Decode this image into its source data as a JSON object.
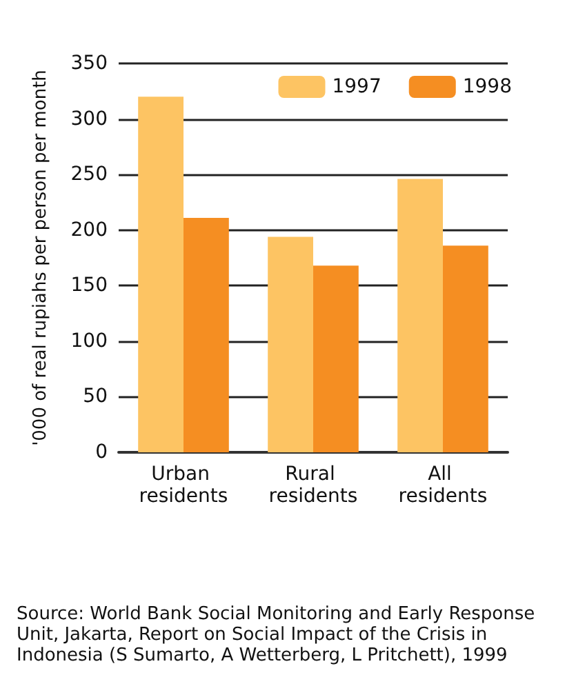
{
  "chart_data": {
    "type": "bar",
    "ylabel": "'000 of real rupiahs per person per month",
    "categories": [
      "Urban residents",
      "Rural residents",
      "All residents"
    ],
    "series": [
      {
        "name": "1997",
        "color": "#fdc463",
        "values": [
          320,
          194,
          246
        ]
      },
      {
        "name": "1998",
        "color": "#f58e22",
        "values": [
          211,
          168,
          186
        ]
      }
    ],
    "ylim": [
      0,
      350
    ],
    "yticks": [
      0,
      50,
      100,
      150,
      200,
      250,
      300,
      350
    ],
    "grid": "y",
    "legend": "top right",
    "annotations": [
      "Source: World Bank Social Monitoring and Early Response Unit, Jakarta, Report on Social Impact of the Crisis in Indonesia (S Sumarto, A Wetterberg, L Pritchett), 1999"
    ]
  }
}
